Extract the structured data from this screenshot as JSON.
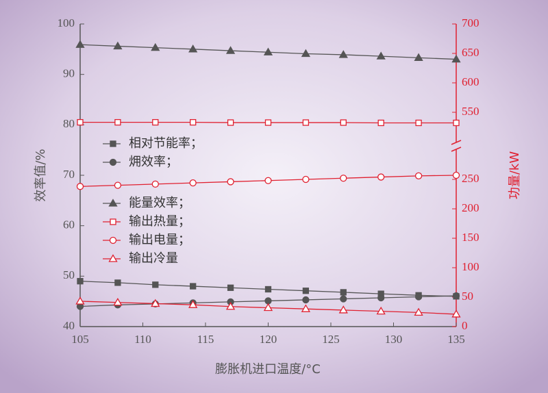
{
  "chart_data": {
    "type": "line",
    "xlabel": "膨胀机进口温度/°C",
    "ylabel": "效率值/%",
    "y2label": "功量/kW",
    "x": [
      105,
      108,
      111,
      114,
      117,
      120,
      123,
      126,
      129,
      132,
      135
    ],
    "xlim": [
      105,
      135
    ],
    "xticks": [
      105,
      110,
      115,
      120,
      125,
      130,
      135
    ],
    "ylim": [
      40,
      100
    ],
    "yticks": [
      40,
      50,
      60,
      70,
      80,
      90,
      100
    ],
    "y2lim": [
      0,
      700
    ],
    "y2break": [
      300,
      500
    ],
    "y2ticks": [
      0,
      50,
      100,
      150,
      200,
      250,
      550,
      600,
      650,
      700
    ],
    "series": [
      {
        "name": "相对节能率；",
        "color": "#555555",
        "marker": "square",
        "filled": true,
        "axis": "y",
        "values": [
          49.0,
          48.7,
          48.3,
          48.0,
          47.7,
          47.4,
          47.1,
          46.8,
          46.5,
          46.2,
          46.0
        ]
      },
      {
        "name": "㶲效率；",
        "color": "#555555",
        "marker": "circle",
        "filled": true,
        "axis": "y",
        "values": [
          44.0,
          44.3,
          44.5,
          44.7,
          44.9,
          45.1,
          45.3,
          45.5,
          45.7,
          45.9,
          46.1
        ]
      },
      {
        "name": "能量效率；",
        "color": "#555555",
        "marker": "triangle",
        "filled": true,
        "axis": "y",
        "values": [
          95.9,
          95.6,
          95.3,
          95.0,
          94.7,
          94.4,
          94.1,
          93.9,
          93.6,
          93.3,
          93.0
        ]
      },
      {
        "name": "输出热量；",
        "color": "#e02030",
        "marker": "square",
        "filled": false,
        "axis": "y2",
        "values": [
          533,
          533,
          533,
          533,
          532.5,
          532.5,
          532.5,
          532.5,
          532,
          532,
          532
        ]
      },
      {
        "name": "输出电量；",
        "color": "#e02030",
        "marker": "circle",
        "filled": false,
        "axis": "y2",
        "values": [
          238,
          240,
          242,
          244,
          246,
          248,
          250,
          252,
          254,
          256,
          257
        ]
      },
      {
        "name": "输出冷量",
        "color": "#e02030",
        "marker": "triangle",
        "filled": false,
        "axis": "y2",
        "values": [
          43,
          41,
          39,
          37,
          34,
          32,
          30,
          28,
          26,
          24,
          21
        ]
      }
    ]
  }
}
